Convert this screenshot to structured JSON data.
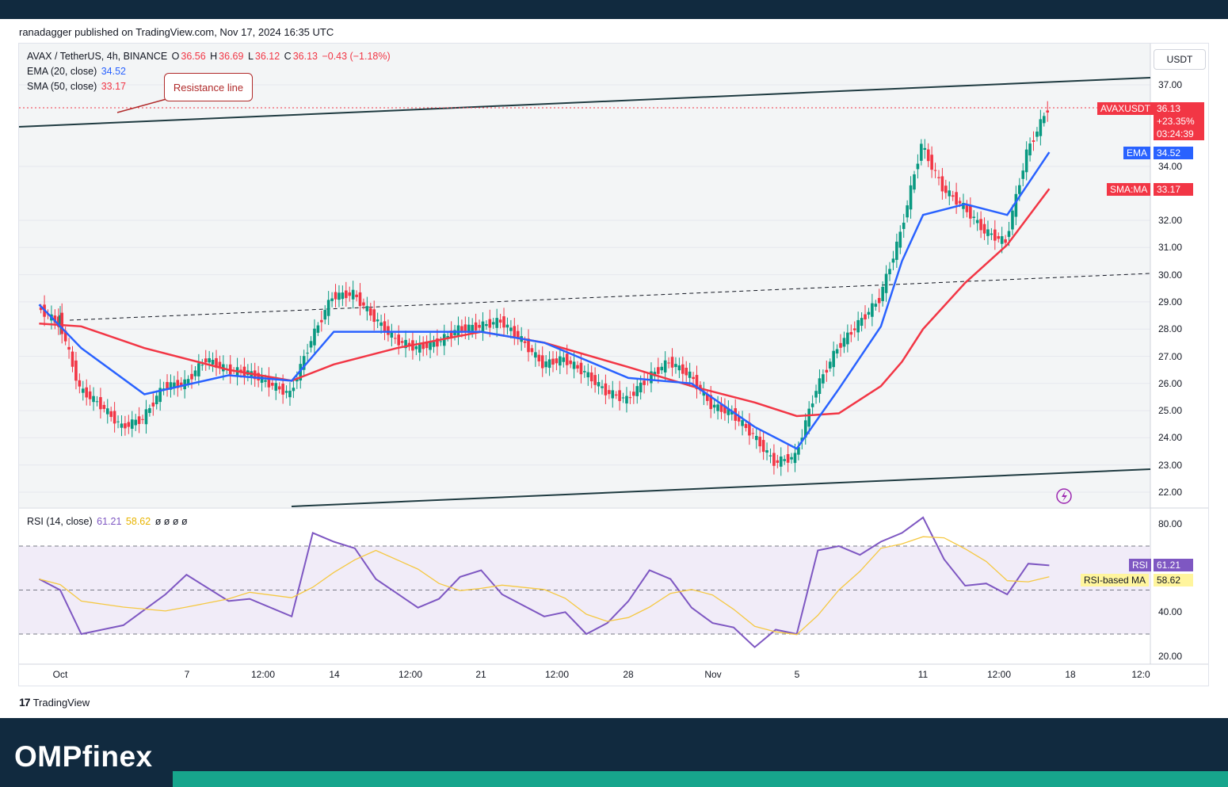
{
  "header": {
    "published_text": "ranadagger published on TradingView.com, Nov 17, 2024 16:35 UTC"
  },
  "legend": {
    "symbol": "AVAX / TetherUS, 4h, BINANCE",
    "o_label": "O",
    "o_value": "36.56",
    "h_label": "H",
    "h_value": "36.69",
    "l_label": "L",
    "l_value": "36.12",
    "c_label": "C",
    "c_value": "36.13",
    "change": "−0.43 (−1.18%)",
    "ema_label": "EMA (20, close)",
    "ema_value": "34.52",
    "sma_label": "SMA (50, close)",
    "sma_value": "33.17",
    "rsi_label": "RSI (14, close)",
    "rsi_value": "61.21",
    "rsi_ma_value": "58.62",
    "rsi_extra": "ø ø ø ø"
  },
  "annotation": {
    "text": "Resistance line"
  },
  "axis": {
    "currency": "USDT",
    "price_ticks": [
      "37.00",
      "34.00",
      "32.00",
      "31.00",
      "30.00",
      "29.00",
      "28.00",
      "27.00",
      "26.00",
      "25.00",
      "24.00",
      "23.00",
      "22.00"
    ],
    "rsi_ticks": [
      "80.00",
      "40.00",
      "20.00"
    ],
    "time_ticks": [
      "Oct",
      "7",
      "12:00",
      "14",
      "12:00",
      "21",
      "12:00",
      "28",
      "Nov",
      "5",
      "11",
      "12:00",
      "18",
      "12:0"
    ]
  },
  "price_tags": {
    "symbol_label": "AVAXUSDT",
    "symbol_price": "36.13",
    "symbol_change": "+23.35%",
    "symbol_countdown": "03:24:39",
    "ema_label": "EMA",
    "ema_value": "34.52",
    "sma_label": "SMA:MA",
    "sma_value": "33.17",
    "rsi_label": "RSI",
    "rsi_value": "61.21",
    "rsi_ma_label": "RSI-based MA",
    "rsi_ma_value": "58.62"
  },
  "colors": {
    "up": "#089981",
    "down": "#f23645",
    "ema": "#2962ff",
    "sma": "#f23645",
    "rsi": "#7e57c2",
    "rsi_ma": "#f5c842",
    "channel": "#1e3a40",
    "brand_dark": "#112a3f",
    "brand_teal": "#17a58c"
  },
  "footer": {
    "tradingview": "TradingView",
    "brand": "OMPfinex"
  },
  "chart_data": {
    "type": "candlestick",
    "title": "AVAX / TetherUS, 4h, BINANCE",
    "timeframe": "4h",
    "x_range": [
      "Sep 29, 2024",
      "Nov 17, 2024"
    ],
    "ylim": [
      21.6,
      37.6
    ],
    "price_series": {
      "name": "AVAX / TetherUS",
      "points": [
        [
          "Sep 29",
          28.8
        ],
        [
          "Sep 30",
          28.2
        ],
        [
          "Oct 1",
          28.4
        ],
        [
          "Oct 2",
          25.8
        ],
        [
          "Oct 3",
          25.2
        ],
        [
          "Oct 4",
          24.4
        ],
        [
          "Oct 5",
          24.7
        ],
        [
          "Oct 6",
          25.9
        ],
        [
          "Oct 7",
          26.0
        ],
        [
          "Oct 8",
          26.9
        ],
        [
          "Oct 9",
          26.5
        ],
        [
          "Oct 10",
          26.4
        ],
        [
          "Oct 11",
          26.0
        ],
        [
          "Oct 12",
          25.6
        ],
        [
          "Oct 13",
          27.6
        ],
        [
          "Oct 14",
          29.2
        ],
        [
          "Oct 15",
          29.3
        ],
        [
          "Oct 16",
          28.4
        ],
        [
          "Oct 17",
          27.6
        ],
        [
          "Oct 18",
          27.3
        ],
        [
          "Oct 19",
          27.5
        ],
        [
          "Oct 20",
          28.0
        ],
        [
          "Oct 21",
          28.1
        ],
        [
          "Oct 22",
          28.3
        ],
        [
          "Oct 23",
          27.6
        ],
        [
          "Oct 24",
          26.7
        ],
        [
          "Oct 25",
          26.9
        ],
        [
          "Oct 26",
          26.4
        ],
        [
          "Oct 27",
          25.7
        ],
        [
          "Oct 28",
          25.4
        ],
        [
          "Oct 29",
          26.2
        ],
        [
          "Oct 30",
          26.8
        ],
        [
          "Oct 31",
          26.3
        ],
        [
          "Nov 1",
          25.2
        ],
        [
          "Nov 2",
          24.9
        ],
        [
          "Nov 3",
          24.1
        ],
        [
          "Nov 4",
          23.1
        ],
        [
          "Nov 5",
          23.3
        ],
        [
          "Nov 6",
          25.8
        ],
        [
          "Nov 7",
          27.3
        ],
        [
          "Nov 8",
          28.2
        ],
        [
          "Nov 9",
          29.1
        ],
        [
          "Nov 10",
          31.5
        ],
        [
          "Nov 11",
          34.8
        ],
        [
          "Nov 12",
          33.2
        ],
        [
          "Nov 13",
          32.5
        ],
        [
          "Nov 14",
          31.6
        ],
        [
          "Nov 15",
          31.2
        ],
        [
          "Nov 16",
          34.5
        ],
        [
          "Nov 17",
          36.13
        ]
      ]
    },
    "series": [
      {
        "name": "EMA (20, close)",
        "last": 34.52,
        "points": [
          [
            "Sep 29",
            28.9
          ],
          [
            "Oct 2",
            27.3
          ],
          [
            "Oct 5",
            25.6
          ],
          [
            "Oct 9",
            26.3
          ],
          [
            "Oct 12",
            26.1
          ],
          [
            "Oct 14",
            27.9
          ],
          [
            "Oct 17",
            27.9
          ],
          [
            "Oct 21",
            27.9
          ],
          [
            "Oct 24",
            27.5
          ],
          [
            "Oct 28",
            26.2
          ],
          [
            "Oct 31",
            26.0
          ],
          [
            "Nov 3",
            24.4
          ],
          [
            "Nov 5",
            23.6
          ],
          [
            "Nov 7",
            25.8
          ],
          [
            "Nov 9",
            28.1
          ],
          [
            "Nov 10",
            30.5
          ],
          [
            "Nov 11",
            32.2
          ],
          [
            "Nov 13",
            32.6
          ],
          [
            "Nov 15",
            32.2
          ],
          [
            "Nov 17",
            34.52
          ]
        ]
      },
      {
        "name": "SMA (50, close)",
        "last": 33.17,
        "points": [
          [
            "Sep 29",
            28.2
          ],
          [
            "Oct 2",
            28.1
          ],
          [
            "Oct 5",
            27.3
          ],
          [
            "Oct 9",
            26.5
          ],
          [
            "Oct 12",
            26.1
          ],
          [
            "Oct 14",
            26.7
          ],
          [
            "Oct 17",
            27.3
          ],
          [
            "Oct 21",
            27.9
          ],
          [
            "Oct 24",
            27.5
          ],
          [
            "Oct 28",
            26.6
          ],
          [
            "Oct 31",
            25.9
          ],
          [
            "Nov 3",
            25.3
          ],
          [
            "Nov 5",
            24.8
          ],
          [
            "Nov 7",
            24.9
          ],
          [
            "Nov 9",
            25.9
          ],
          [
            "Nov 10",
            26.8
          ],
          [
            "Nov 11",
            28.0
          ],
          [
            "Nov 13",
            29.7
          ],
          [
            "Nov 15",
            31.1
          ],
          [
            "Nov 17",
            33.17
          ]
        ]
      }
    ],
    "rsi": {
      "name": "RSI (14, close)",
      "last": 61.21,
      "ma_last": 58.62,
      "levels": [
        70,
        50,
        30
      ],
      "points": [
        [
          "Sep 29",
          55
        ],
        [
          "Oct 1",
          50
        ],
        [
          "Oct 2",
          30
        ],
        [
          "Oct 4",
          34
        ],
        [
          "Oct 6",
          48
        ],
        [
          "Oct 7",
          57
        ],
        [
          "Oct 9",
          45
        ],
        [
          "Oct 10",
          46
        ],
        [
          "Oct 12",
          38
        ],
        [
          "Oct 13",
          76
        ],
        [
          "Oct 14",
          72
        ],
        [
          "Oct 15",
          69
        ],
        [
          "Oct 16",
          55
        ],
        [
          "Oct 18",
          42
        ],
        [
          "Oct 19",
          46
        ],
        [
          "Oct 20",
          56
        ],
        [
          "Oct 21",
          59
        ],
        [
          "Oct 22",
          48
        ],
        [
          "Oct 24",
          38
        ],
        [
          "Oct 25",
          40
        ],
        [
          "Oct 26",
          30
        ],
        [
          "Oct 27",
          35
        ],
        [
          "Oct 28",
          45
        ],
        [
          "Oct 29",
          59
        ],
        [
          "Oct 30",
          55
        ],
        [
          "Oct 31",
          42
        ],
        [
          "Nov 1",
          35
        ],
        [
          "Nov 2",
          33
        ],
        [
          "Nov 3",
          24
        ],
        [
          "Nov 4",
          32
        ],
        [
          "Nov 5",
          30
        ],
        [
          "Nov 6",
          68
        ],
        [
          "Nov 7",
          70
        ],
        [
          "Nov 8",
          66
        ],
        [
          "Nov 9",
          72
        ],
        [
          "Nov 10",
          76
        ],
        [
          "Nov 11",
          83
        ],
        [
          "Nov 12",
          64
        ],
        [
          "Nov 13",
          52
        ],
        [
          "Nov 14",
          53
        ],
        [
          "Nov 15",
          48
        ],
        [
          "Nov 16",
          62
        ],
        [
          "Nov 17",
          61.21
        ]
      ]
    },
    "annotations": [
      "Resistance line"
    ],
    "grid": true
  }
}
